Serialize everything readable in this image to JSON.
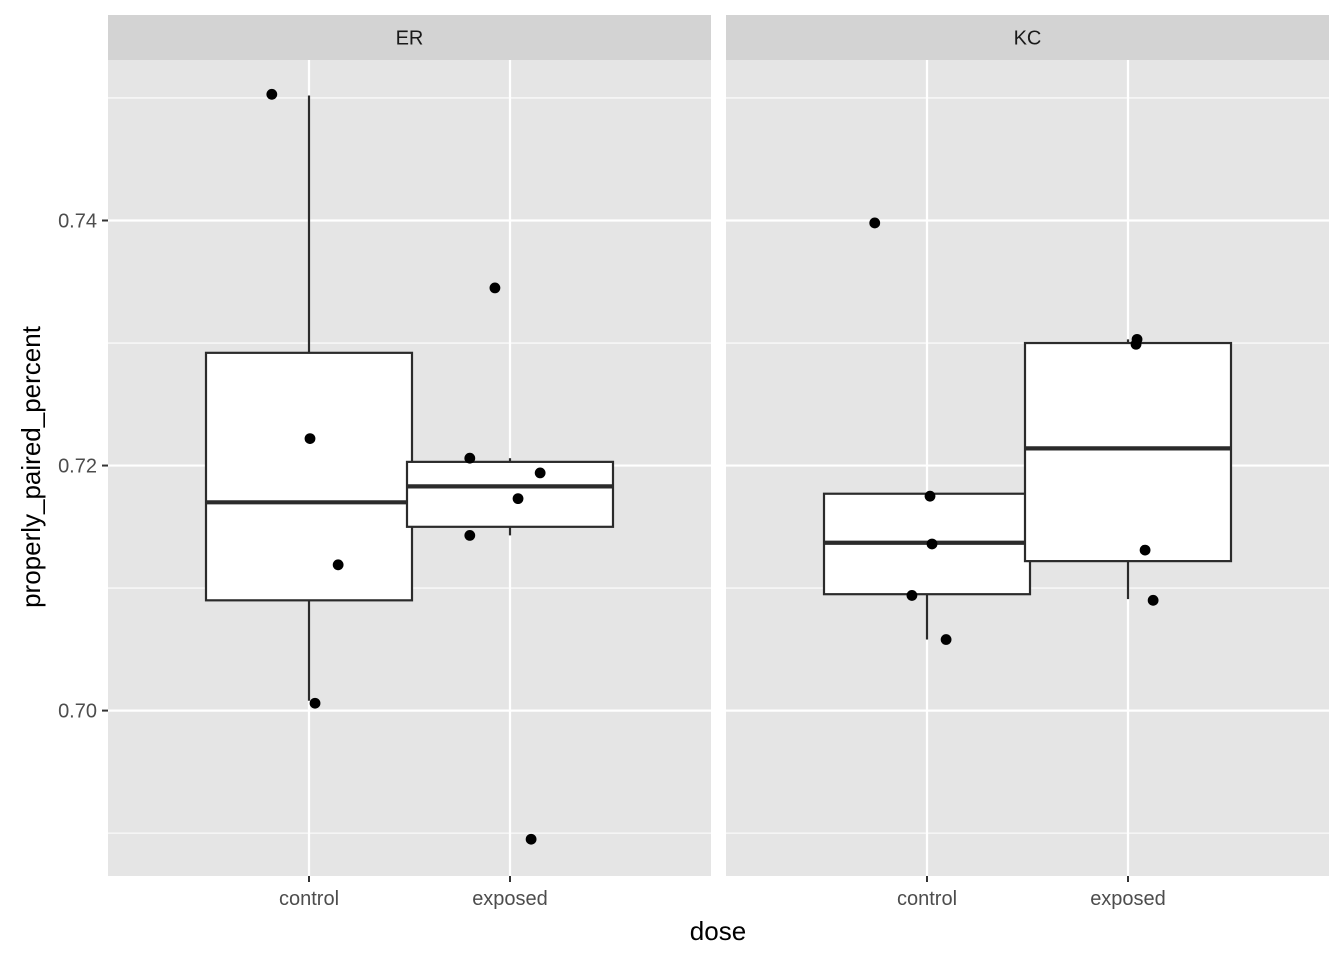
{
  "chart_data": {
    "type": "boxplot",
    "xlabel": "dose",
    "ylabel": "properly_paired_percent",
    "ylim": [
      0.6865,
      0.7531
    ],
    "y_ticks": [
      0.7,
      0.72,
      0.74
    ],
    "y_tick_labels": [
      "0.70",
      "0.72",
      "0.74"
    ],
    "categories": [
      "control",
      "exposed"
    ],
    "grid": true,
    "legend": "none",
    "colors": {
      "panel_bg": "#e5e5e5",
      "grid": "#ffffff",
      "strip_bg": "#d3d3d3",
      "box_fill": "#ffffff",
      "box_stroke": "#2b2b2b",
      "point": "#000000"
    },
    "facets": [
      {
        "label": "ER",
        "boxes": [
          {
            "category": "control",
            "whisker_low": 0.7008,
            "q1": 0.709,
            "median": 0.717,
            "q3": 0.7292,
            "whisker_high": 0.7502
          },
          {
            "category": "exposed",
            "whisker_low": 0.7143,
            "q1": 0.715,
            "median": 0.7183,
            "q3": 0.7203,
            "whisker_high": 0.7206
          }
        ],
        "points": [
          {
            "category": "control",
            "jitter": -0.37,
            "y": 0.7503
          },
          {
            "category": "control",
            "jitter": 0.01,
            "y": 0.7222
          },
          {
            "category": "control",
            "jitter": 0.29,
            "y": 0.7119
          },
          {
            "category": "control",
            "jitter": 0.06,
            "y": 0.7006
          },
          {
            "category": "exposed",
            "jitter": -0.15,
            "y": 0.7345
          },
          {
            "category": "exposed",
            "jitter": -0.4,
            "y": 0.7206
          },
          {
            "category": "exposed",
            "jitter": 0.3,
            "y": 0.7194
          },
          {
            "category": "exposed",
            "jitter": 0.08,
            "y": 0.7173
          },
          {
            "category": "exposed",
            "jitter": -0.4,
            "y": 0.7143
          },
          {
            "category": "exposed",
            "jitter": 0.21,
            "y": 0.6895
          }
        ]
      },
      {
        "label": "KC",
        "boxes": [
          {
            "category": "control",
            "whisker_low": 0.7058,
            "q1": 0.7095,
            "median": 0.7137,
            "q3": 0.7177,
            "whisker_high": 0.7177
          },
          {
            "category": "exposed",
            "whisker_low": 0.7091,
            "q1": 0.7122,
            "median": 0.7214,
            "q3": 0.73,
            "whisker_high": 0.7303
          }
        ],
        "points": [
          {
            "category": "control",
            "jitter": -0.52,
            "y": 0.7398
          },
          {
            "category": "control",
            "jitter": 0.03,
            "y": 0.7175
          },
          {
            "category": "control",
            "jitter": 0.05,
            "y": 0.7136
          },
          {
            "category": "control",
            "jitter": -0.15,
            "y": 0.7094
          },
          {
            "category": "control",
            "jitter": 0.19,
            "y": 0.7058
          },
          {
            "category": "exposed",
            "jitter": 0.09,
            "y": 0.7303
          },
          {
            "category": "exposed",
            "jitter": 0.08,
            "y": 0.7299
          },
          {
            "category": "exposed",
            "jitter": 0.17,
            "y": 0.7131
          },
          {
            "category": "exposed",
            "jitter": 0.25,
            "y": 0.709
          }
        ]
      }
    ]
  }
}
